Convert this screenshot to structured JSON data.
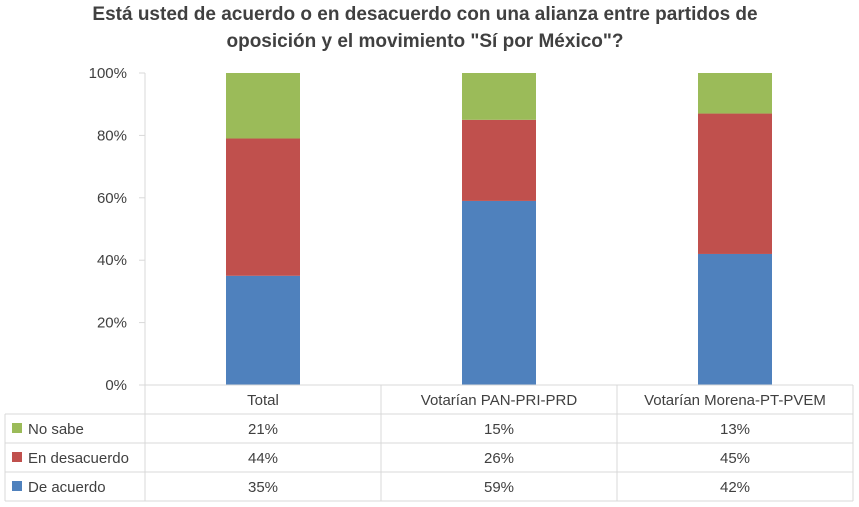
{
  "chart_data": {
    "type": "bar",
    "stacked": true,
    "title": "Está usted de acuerdo o en desacuerdo con una alianza entre partidos de oposición y el movimiento \"Sí por México\"?",
    "title_lines": [
      "Está usted de acuerdo o en desacuerdo con una alianza entre partidos de",
      "oposición y el movimiento \"Sí por México\"?"
    ],
    "categories": [
      "Total",
      "Votarían PAN-PRI-PRD",
      "Votarían Morena-PT-PVEM"
    ],
    "series": [
      {
        "name": "De acuerdo",
        "color": "#4F81BD",
        "values": [
          35,
          59,
          42
        ],
        "labels": [
          "35%",
          "59%",
          "42%"
        ]
      },
      {
        "name": "En desacuerdo",
        "color": "#C0504D",
        "values": [
          44,
          26,
          45
        ],
        "labels": [
          "44%",
          "26%",
          "45%"
        ]
      },
      {
        "name": "No sabe",
        "color": "#9BBB59",
        "values": [
          21,
          15,
          13
        ],
        "labels": [
          "21%",
          "15%",
          "13%"
        ]
      }
    ],
    "table_row_order": [
      "No sabe",
      "En desacuerdo",
      "De acuerdo"
    ],
    "ylim": [
      0,
      100
    ],
    "yticks": [
      "0%",
      "20%",
      "40%",
      "60%",
      "80%",
      "100%"
    ],
    "grid": false,
    "legend": "data-table"
  }
}
